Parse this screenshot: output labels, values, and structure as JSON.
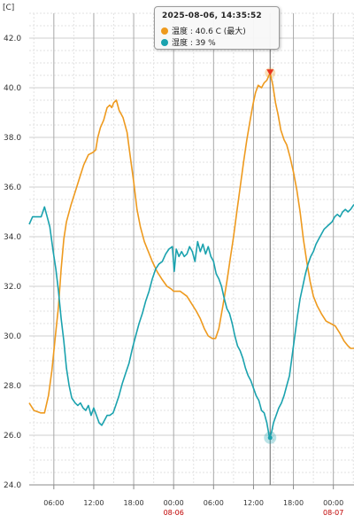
{
  "unit_label": "[C]",
  "colors": {
    "temperature": "#ee9a1e",
    "humidity": "#1aa2ae",
    "grid": "#cfcfcf",
    "grid_strong": "#a8a8a8",
    "date_label": "#c00000",
    "max_marker": "#e8351e"
  },
  "tooltip": {
    "title": "2025-08-06, 14:35:52",
    "temperature_text": "温度 : 40.6 C (最大)",
    "humidity_text": "湿度 : 39 %"
  },
  "chart_data": {
    "type": "line",
    "title": "",
    "xlabel": "",
    "ylabel": "[C]",
    "ylim": [
      24,
      43
    ],
    "yticks": [
      "24.0",
      "26.0",
      "28.0",
      "30.0",
      "32.0",
      "34.0",
      "36.0",
      "38.0",
      "40.0",
      "42.0"
    ],
    "x_unit": "hours since 2025-08-05 00:00",
    "xlim": [
      2.3,
      51.1
    ],
    "xticks": [
      {
        "x": 6,
        "label": "06:00"
      },
      {
        "x": 12,
        "label": "12:00"
      },
      {
        "x": 18,
        "label": "18:00"
      },
      {
        "x": 24,
        "label": "00:00"
      },
      {
        "x": 30,
        "label": "06:00"
      },
      {
        "x": 36,
        "label": "12:00"
      },
      {
        "x": 42,
        "label": "18:00"
      },
      {
        "x": 48,
        "label": "00:00"
      }
    ],
    "date_labels": [
      {
        "x": 24,
        "label": "08-06"
      },
      {
        "x": 48,
        "label": "08-07"
      }
    ],
    "grid": true,
    "series": [
      {
        "name": "温度",
        "unit": "C",
        "points": [
          [
            2.3,
            27.3
          ],
          [
            3.0,
            27.0
          ],
          [
            4.0,
            26.9
          ],
          [
            4.6,
            26.9
          ],
          [
            5.2,
            27.6
          ],
          [
            5.7,
            28.6
          ],
          [
            6.2,
            29.9
          ],
          [
            6.7,
            31.2
          ],
          [
            7.1,
            32.7
          ],
          [
            7.5,
            33.9
          ],
          [
            7.9,
            34.6
          ],
          [
            8.6,
            35.3
          ],
          [
            9.2,
            35.8
          ],
          [
            9.9,
            36.4
          ],
          [
            10.5,
            36.9
          ],
          [
            11.2,
            37.3
          ],
          [
            11.9,
            37.4
          ],
          [
            12.3,
            37.5
          ],
          [
            12.6,
            38.0
          ],
          [
            13.0,
            38.4
          ],
          [
            13.5,
            38.7
          ],
          [
            14.0,
            39.2
          ],
          [
            14.4,
            39.3
          ],
          [
            14.7,
            39.2
          ],
          [
            15.0,
            39.4
          ],
          [
            15.4,
            39.5
          ],
          [
            15.8,
            39.1
          ],
          [
            16.4,
            38.8
          ],
          [
            17.0,
            38.2
          ],
          [
            17.5,
            37.2
          ],
          [
            18.0,
            36.2
          ],
          [
            18.5,
            35.1
          ],
          [
            19.0,
            34.4
          ],
          [
            19.6,
            33.8
          ],
          [
            20.2,
            33.4
          ],
          [
            20.8,
            33.0
          ],
          [
            21.5,
            32.6
          ],
          [
            22.2,
            32.3
          ],
          [
            23.0,
            32.0
          ],
          [
            23.6,
            31.9
          ],
          [
            24.0,
            31.8
          ],
          [
            25.0,
            31.8
          ],
          [
            26.0,
            31.6
          ],
          [
            26.7,
            31.3
          ],
          [
            27.4,
            31.0
          ],
          [
            28.0,
            30.7
          ],
          [
            28.6,
            30.3
          ],
          [
            29.2,
            30.0
          ],
          [
            29.8,
            29.9
          ],
          [
            30.3,
            29.9
          ],
          [
            30.8,
            30.3
          ],
          [
            31.4,
            31.2
          ],
          [
            32.0,
            32.2
          ],
          [
            32.5,
            33.1
          ],
          [
            33.0,
            34.0
          ],
          [
            33.5,
            35.0
          ],
          [
            34.0,
            36.0
          ],
          [
            34.5,
            37.0
          ],
          [
            35.0,
            37.9
          ],
          [
            35.5,
            38.7
          ],
          [
            35.9,
            39.3
          ],
          [
            36.3,
            39.8
          ],
          [
            36.7,
            40.1
          ],
          [
            37.2,
            40.0
          ],
          [
            37.6,
            40.2
          ],
          [
            38.0,
            40.3
          ],
          [
            38.5,
            40.6
          ],
          [
            38.9,
            40.1
          ],
          [
            39.3,
            39.4
          ],
          [
            39.7,
            38.9
          ],
          [
            40.1,
            38.3
          ],
          [
            40.6,
            37.9
          ],
          [
            41.0,
            37.7
          ],
          [
            41.5,
            37.2
          ],
          [
            42.0,
            36.6
          ],
          [
            42.5,
            35.9
          ],
          [
            43.0,
            35.0
          ],
          [
            43.5,
            33.9
          ],
          [
            44.0,
            33.0
          ],
          [
            44.5,
            32.2
          ],
          [
            45.0,
            31.6
          ],
          [
            45.6,
            31.2
          ],
          [
            46.2,
            30.9
          ],
          [
            46.9,
            30.6
          ],
          [
            47.6,
            30.5
          ],
          [
            48.3,
            30.4
          ],
          [
            49.0,
            30.1
          ],
          [
            49.6,
            29.8
          ],
          [
            50.2,
            29.6
          ],
          [
            50.6,
            29.5
          ],
          [
            51.1,
            29.5
          ]
        ]
      },
      {
        "name": "湿度",
        "unit": "%",
        "points": [
          [
            2.3,
            34.5
          ],
          [
            2.8,
            34.8
          ],
          [
            3.4,
            34.8
          ],
          [
            4.1,
            34.8
          ],
          [
            4.6,
            35.2
          ],
          [
            5.0,
            34.8
          ],
          [
            5.4,
            34.4
          ],
          [
            5.9,
            33.4
          ],
          [
            6.3,
            32.7
          ],
          [
            6.7,
            31.8
          ],
          [
            7.1,
            30.7
          ],
          [
            7.5,
            29.8
          ],
          [
            7.9,
            28.7
          ],
          [
            8.3,
            28.0
          ],
          [
            8.7,
            27.5
          ],
          [
            9.2,
            27.3
          ],
          [
            9.6,
            27.2
          ],
          [
            10.0,
            27.3
          ],
          [
            10.4,
            27.1
          ],
          [
            10.8,
            27.0
          ],
          [
            11.2,
            27.2
          ],
          [
            11.6,
            26.8
          ],
          [
            12.0,
            27.1
          ],
          [
            12.4,
            26.8
          ],
          [
            12.8,
            26.5
          ],
          [
            13.2,
            26.4
          ],
          [
            13.6,
            26.6
          ],
          [
            14.0,
            26.8
          ],
          [
            14.4,
            26.8
          ],
          [
            14.9,
            26.9
          ],
          [
            15.3,
            27.2
          ],
          [
            15.8,
            27.6
          ],
          [
            16.3,
            28.1
          ],
          [
            16.8,
            28.5
          ],
          [
            17.3,
            28.9
          ],
          [
            17.8,
            29.5
          ],
          [
            18.3,
            30.0
          ],
          [
            18.8,
            30.5
          ],
          [
            19.3,
            30.9
          ],
          [
            19.8,
            31.4
          ],
          [
            20.3,
            31.8
          ],
          [
            20.8,
            32.3
          ],
          [
            21.3,
            32.7
          ],
          [
            21.8,
            32.9
          ],
          [
            22.3,
            33.0
          ],
          [
            22.8,
            33.3
          ],
          [
            23.3,
            33.5
          ],
          [
            23.8,
            33.6
          ],
          [
            24.1,
            32.6
          ],
          [
            24.4,
            33.5
          ],
          [
            24.8,
            33.2
          ],
          [
            25.2,
            33.4
          ],
          [
            25.6,
            33.2
          ],
          [
            26.0,
            33.3
          ],
          [
            26.4,
            33.6
          ],
          [
            26.8,
            33.4
          ],
          [
            27.2,
            33.0
          ],
          [
            27.6,
            33.8
          ],
          [
            28.0,
            33.4
          ],
          [
            28.4,
            33.7
          ],
          [
            28.8,
            33.3
          ],
          [
            29.2,
            33.6
          ],
          [
            29.6,
            33.2
          ],
          [
            30.0,
            33.0
          ],
          [
            30.4,
            32.5
          ],
          [
            30.8,
            32.3
          ],
          [
            31.2,
            32.0
          ],
          [
            31.6,
            31.5
          ],
          [
            32.0,
            31.1
          ],
          [
            32.4,
            30.9
          ],
          [
            32.8,
            30.5
          ],
          [
            33.2,
            30.0
          ],
          [
            33.6,
            29.6
          ],
          [
            34.0,
            29.4
          ],
          [
            34.4,
            29.1
          ],
          [
            34.8,
            28.7
          ],
          [
            35.2,
            28.4
          ],
          [
            35.6,
            28.2
          ],
          [
            36.0,
            27.9
          ],
          [
            36.4,
            27.6
          ],
          [
            36.8,
            27.4
          ],
          [
            37.2,
            27.0
          ],
          [
            37.6,
            26.9
          ],
          [
            38.0,
            26.5
          ],
          [
            38.4,
            25.9
          ],
          [
            38.7,
            26.1
          ],
          [
            39.0,
            26.5
          ],
          [
            39.4,
            26.8
          ],
          [
            39.8,
            27.1
          ],
          [
            40.2,
            27.3
          ],
          [
            40.6,
            27.6
          ],
          [
            41.0,
            28.0
          ],
          [
            41.4,
            28.4
          ],
          [
            41.8,
            29.2
          ],
          [
            42.2,
            30.0
          ],
          [
            42.6,
            30.8
          ],
          [
            43.0,
            31.5
          ],
          [
            43.4,
            32.0
          ],
          [
            43.8,
            32.5
          ],
          [
            44.2,
            32.9
          ],
          [
            44.6,
            33.2
          ],
          [
            45.0,
            33.4
          ],
          [
            45.4,
            33.7
          ],
          [
            45.8,
            33.9
          ],
          [
            46.2,
            34.1
          ],
          [
            46.6,
            34.3
          ],
          [
            47.0,
            34.4
          ],
          [
            47.4,
            34.5
          ],
          [
            47.8,
            34.6
          ],
          [
            48.2,
            34.8
          ],
          [
            48.6,
            34.9
          ],
          [
            49.0,
            34.8
          ],
          [
            49.4,
            35.0
          ],
          [
            49.8,
            35.1
          ],
          [
            50.2,
            35.0
          ],
          [
            50.6,
            35.1
          ],
          [
            51.1,
            35.3
          ]
        ]
      }
    ],
    "highlight": {
      "x": 38.5,
      "temperature": 40.6,
      "humidity_plot_y": 25.9
    }
  }
}
